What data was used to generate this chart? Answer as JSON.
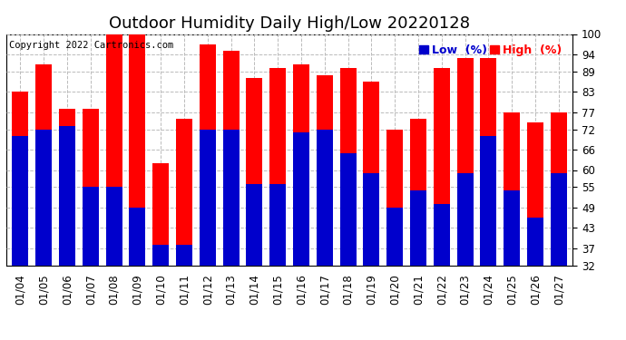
{
  "title": "Outdoor Humidity Daily High/Low 20220128",
  "copyright": "Copyright 2022 Cartronics.com",
  "legend_low_label": "Low  (%)",
  "legend_high_label": "High  (%)",
  "dates": [
    "01/04",
    "01/05",
    "01/06",
    "01/07",
    "01/08",
    "01/09",
    "01/10",
    "01/11",
    "01/12",
    "01/13",
    "01/14",
    "01/15",
    "01/16",
    "01/17",
    "01/18",
    "01/19",
    "01/20",
    "01/21",
    "01/22",
    "01/23",
    "01/24",
    "01/25",
    "01/26",
    "01/27"
  ],
  "high_values": [
    83,
    91,
    78,
    78,
    100,
    100,
    62,
    75,
    97,
    95,
    87,
    90,
    91,
    88,
    90,
    86,
    72,
    75,
    90,
    93,
    93,
    77,
    74,
    77
  ],
  "low_values": [
    70,
    72,
    73,
    55,
    55,
    49,
    38,
    38,
    72,
    72,
    56,
    56,
    71,
    72,
    65,
    59,
    49,
    54,
    50,
    59,
    70,
    54,
    46,
    59
  ],
  "ylim": [
    32,
    100
  ],
  "yticks": [
    32,
    37,
    43,
    49,
    55,
    60,
    66,
    72,
    77,
    83,
    89,
    94,
    100
  ],
  "bar_color_high": "#ff0000",
  "bar_color_low": "#0000cc",
  "bg_color": "#ffffff",
  "grid_color": "#bbbbbb",
  "title_fontsize": 13,
  "copyright_fontsize": 7.5,
  "tick_fontsize": 8.5,
  "legend_fontsize": 9
}
